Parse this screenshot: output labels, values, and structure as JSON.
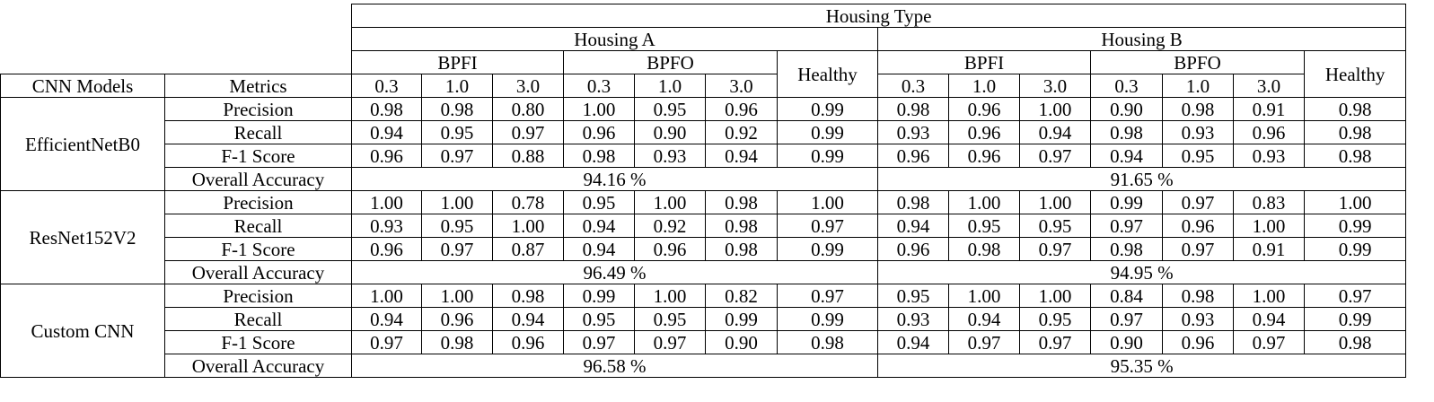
{
  "header": {
    "housing_type": "Housing Type",
    "housing_a": "Housing A",
    "housing_b": "Housing B",
    "bpfi": "BPFI",
    "bpfo": "BPFO",
    "healthy": "Healthy",
    "cnn_models": "CNN Models",
    "metrics": "Metrics",
    "levels": [
      "0.3",
      "1.0",
      "3.0"
    ]
  },
  "models": [
    {
      "name": "EfficientNetB0",
      "rows": [
        {
          "metric": "Precision",
          "a": [
            "0.98",
            "0.98",
            "0.80",
            "1.00",
            "0.95",
            "0.96",
            "0.99"
          ],
          "b": [
            "0.98",
            "0.96",
            "1.00",
            "0.90",
            "0.98",
            "0.91",
            "0.98"
          ]
        },
        {
          "metric": "Recall",
          "a": [
            "0.94",
            "0.95",
            "0.97",
            "0.96",
            "0.90",
            "0.92",
            "0.99"
          ],
          "b": [
            "0.93",
            "0.96",
            "0.94",
            "0.98",
            "0.93",
            "0.96",
            "0.98"
          ]
        },
        {
          "metric": "F-1 Score",
          "a": [
            "0.96",
            "0.97",
            "0.88",
            "0.98",
            "0.93",
            "0.94",
            "0.99"
          ],
          "b": [
            "0.96",
            "0.96",
            "0.97",
            "0.94",
            "0.95",
            "0.93",
            "0.98"
          ]
        }
      ],
      "overall_label": "Overall Accuracy",
      "overall_a": "94.16 %",
      "overall_b": "91.65 %"
    },
    {
      "name": "ResNet152V2",
      "rows": [
        {
          "metric": "Precision",
          "a": [
            "1.00",
            "1.00",
            "0.78",
            "0.95",
            "1.00",
            "0.98",
            "1.00"
          ],
          "b": [
            "0.98",
            "1.00",
            "1.00",
            "0.99",
            "0.97",
            "0.83",
            "1.00"
          ]
        },
        {
          "metric": "Recall",
          "a": [
            "0.93",
            "0.95",
            "1.00",
            "0.94",
            "0.92",
            "0.98",
            "0.97"
          ],
          "b": [
            "0.94",
            "0.95",
            "0.95",
            "0.97",
            "0.96",
            "1.00",
            "0.99"
          ]
        },
        {
          "metric": "F-1 Score",
          "a": [
            "0.96",
            "0.97",
            "0.87",
            "0.94",
            "0.96",
            "0.98",
            "0.99"
          ],
          "b": [
            "0.96",
            "0.98",
            "0.97",
            "0.98",
            "0.97",
            "0.91",
            "0.99"
          ]
        }
      ],
      "overall_label": "Overall Accuracy",
      "overall_a": "96.49 %",
      "overall_b": "94.95 %"
    },
    {
      "name": "Custom CNN",
      "rows": [
        {
          "metric": "Precision",
          "a": [
            "1.00",
            "1.00",
            "0.98",
            "0.99",
            "1.00",
            "0.82",
            "0.97"
          ],
          "b": [
            "0.95",
            "1.00",
            "1.00",
            "0.84",
            "0.98",
            "1.00",
            "0.97"
          ]
        },
        {
          "metric": "Recall",
          "a": [
            "0.94",
            "0.96",
            "0.94",
            "0.95",
            "0.95",
            "0.99",
            "0.99"
          ],
          "b": [
            "0.93",
            "0.94",
            "0.95",
            "0.97",
            "0.93",
            "0.94",
            "0.99"
          ]
        },
        {
          "metric": "F-1 Score",
          "a": [
            "0.97",
            "0.98",
            "0.96",
            "0.97",
            "0.97",
            "0.90",
            "0.98"
          ],
          "b": [
            "0.94",
            "0.97",
            "0.97",
            "0.90",
            "0.96",
            "0.97",
            "0.98"
          ]
        }
      ],
      "overall_label": "Overall Accuracy",
      "overall_a": "96.58 %",
      "overall_b": "95.35 %"
    }
  ]
}
